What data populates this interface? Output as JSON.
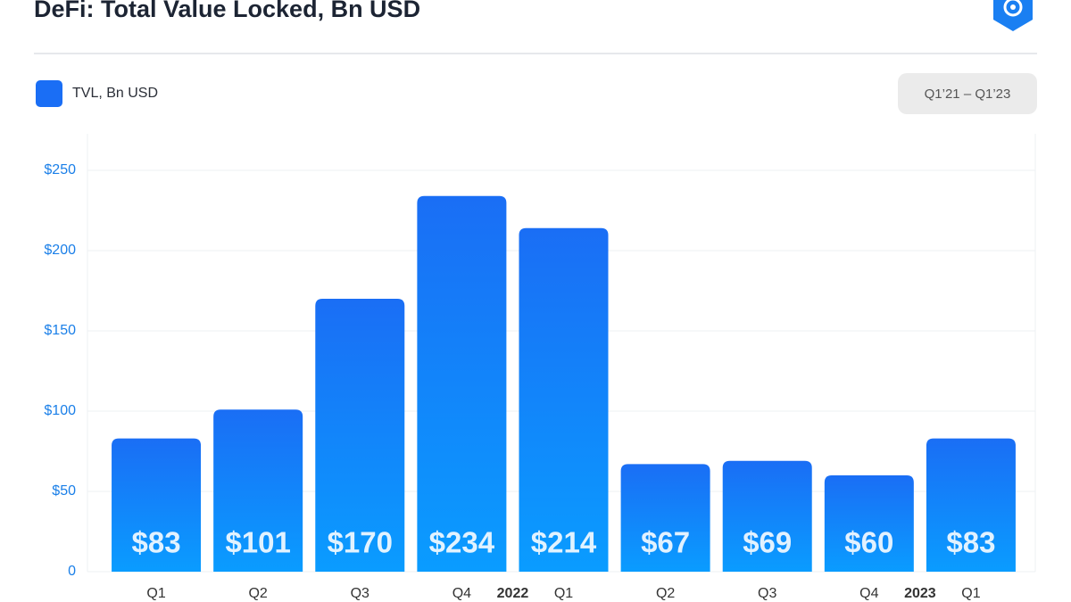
{
  "chart_data": {
    "type": "bar",
    "title": "DeFi: Total Value Locked, Bn USD",
    "subtitle": "Q1’21 – Q1’23",
    "categories": [
      "Q1",
      "Q2",
      "Q3",
      "Q4",
      "Q1",
      "Q2",
      "Q3",
      "Q4",
      "Q1"
    ],
    "years": [
      null,
      null,
      null,
      null,
      "2022",
      null,
      null,
      null,
      "2023"
    ],
    "series": [
      {
        "name": "TVL, Bn USD",
        "color": "#1a6ef5",
        "values": [
          83,
          101,
          170,
          234,
          214,
          67,
          69,
          60,
          83
        ],
        "value_labels": [
          "$83",
          "$101",
          "$170",
          "$234",
          "$214",
          "$67",
          "$69",
          "$60",
          "$83"
        ]
      }
    ],
    "ylim": [
      0,
      270
    ],
    "yticks": [
      0,
      {
        "value": 50,
        "label": "$50"
      },
      {
        "value": 100,
        "label": "$100"
      },
      {
        "value": 150,
        "label": "$150"
      },
      {
        "value": 200,
        "label": "$200"
      },
      {
        "value": 250,
        "label": "$250"
      }
    ],
    "grid": true
  }
}
